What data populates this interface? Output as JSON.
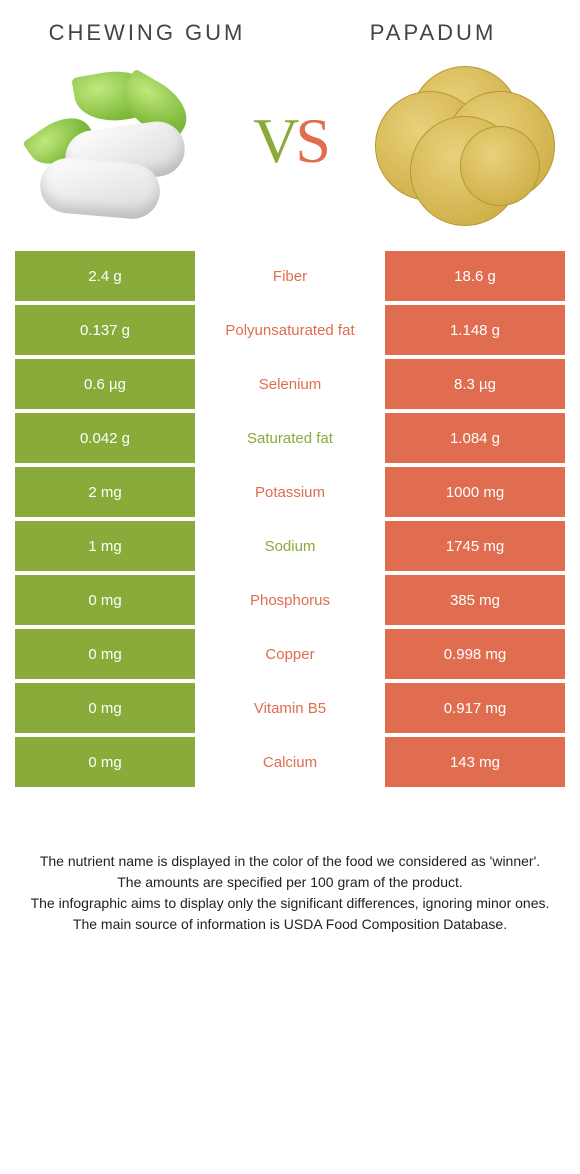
{
  "left_food": "CHEWING GUM",
  "right_food": "PAPADUM",
  "vs_v": "V",
  "vs_s": "S",
  "colors": {
    "left": "#8aab3a",
    "right": "#e06d4f"
  },
  "rows": [
    {
      "left": "2.4 g",
      "name": "Fiber",
      "right": "18.6 g",
      "winner": "right"
    },
    {
      "left": "0.137 g",
      "name": "Polyunsaturated fat",
      "right": "1.148 g",
      "winner": "right"
    },
    {
      "left": "0.6 µg",
      "name": "Selenium",
      "right": "8.3 µg",
      "winner": "right"
    },
    {
      "left": "0.042 g",
      "name": "Saturated fat",
      "right": "1.084 g",
      "winner": "left"
    },
    {
      "left": "2 mg",
      "name": "Potassium",
      "right": "1000 mg",
      "winner": "right"
    },
    {
      "left": "1 mg",
      "name": "Sodium",
      "right": "1745 mg",
      "winner": "left"
    },
    {
      "left": "0 mg",
      "name": "Phosphorus",
      "right": "385 mg",
      "winner": "right"
    },
    {
      "left": "0 mg",
      "name": "Copper",
      "right": "0.998 mg",
      "winner": "right"
    },
    {
      "left": "0 mg",
      "name": "Vitamin B5",
      "right": "0.917 mg",
      "winner": "right"
    },
    {
      "left": "0 mg",
      "name": "Calcium",
      "right": "143 mg",
      "winner": "right"
    }
  ],
  "footer": {
    "l1": "The nutrient name is displayed in the color of the food we considered as 'winner'.",
    "l2": "The amounts are specified per 100 gram of the product.",
    "l3": "The infographic aims to display only the significant differences, ignoring minor ones.",
    "l4": "The main source of information is USDA Food Composition Database."
  }
}
